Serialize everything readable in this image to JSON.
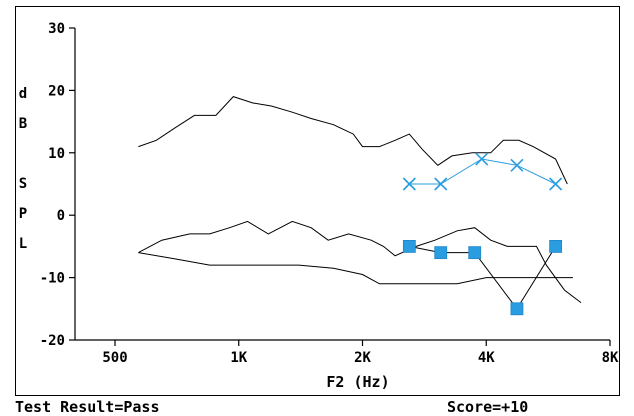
{
  "footer": {
    "result": "Test Result=Pass",
    "score": "Score=+10"
  },
  "chart_data": {
    "type": "line",
    "xlabel": "F2 (Hz)",
    "ylabel": "dBSPL",
    "ylabel_letters": [
      "d",
      "B",
      "S",
      "P",
      "L"
    ],
    "x_scale": "log2",
    "xlim": [
      500,
      8000
    ],
    "ylim": [
      -20,
      30
    ],
    "x_ticks": [
      {
        "value": 500,
        "label": "500"
      },
      {
        "value": 1000,
        "label": "1K"
      },
      {
        "value": 2000,
        "label": "2K"
      },
      {
        "value": 4000,
        "label": "4K"
      },
      {
        "value": 8000,
        "label": "8K"
      }
    ],
    "y_ticks": [
      {
        "value": 30,
        "label": "30"
      },
      {
        "value": 20,
        "label": "20"
      },
      {
        "value": 10,
        "label": "10"
      },
      {
        "value": 0,
        "label": "0"
      },
      {
        "value": -10,
        "label": "-10"
      },
      {
        "value": -20,
        "label": "-20"
      }
    ],
    "grid": false,
    "colors": {
      "axis": "#000000",
      "markers": "#2a9de0"
    },
    "series": [
      {
        "style": "upper-norm",
        "points": [
          [
            570,
            11
          ],
          [
            630,
            12
          ],
          [
            700,
            14
          ],
          [
            780,
            16
          ],
          [
            880,
            16
          ],
          [
            970,
            19
          ],
          [
            1080,
            18
          ],
          [
            1200,
            17.5
          ],
          [
            1350,
            16.5
          ],
          [
            1500,
            15.5
          ],
          [
            1700,
            14.5
          ],
          [
            1900,
            13
          ],
          [
            2000,
            11
          ],
          [
            2200,
            11
          ],
          [
            2400,
            12
          ],
          [
            2600,
            13
          ],
          [
            2800,
            10.5
          ],
          [
            3050,
            8
          ],
          [
            3300,
            9.5
          ],
          [
            3700,
            10
          ],
          [
            4100,
            10
          ],
          [
            4400,
            12
          ],
          [
            4800,
            12
          ],
          [
            5200,
            11
          ],
          [
            5900,
            9
          ],
          [
            6300,
            5
          ]
        ]
      },
      {
        "style": "lower-norm",
        "points": [
          [
            570,
            -6
          ],
          [
            650,
            -4
          ],
          [
            760,
            -3
          ],
          [
            850,
            -3
          ],
          [
            950,
            -2
          ],
          [
            1050,
            -1
          ],
          [
            1180,
            -3
          ],
          [
            1350,
            -1
          ],
          [
            1500,
            -2
          ],
          [
            1650,
            -4
          ],
          [
            1850,
            -3
          ],
          [
            2100,
            -4
          ],
          [
            2250,
            -5
          ],
          [
            2400,
            -6.5
          ],
          [
            2700,
            -5
          ],
          [
            3000,
            -4
          ],
          [
            3400,
            -2.5
          ],
          [
            3750,
            -2
          ],
          [
            4100,
            -4
          ],
          [
            4500,
            -5
          ],
          [
            5000,
            -5
          ],
          [
            5300,
            -5
          ],
          [
            5600,
            -8
          ],
          [
            6200,
            -12
          ],
          [
            6800,
            -14
          ]
        ]
      },
      {
        "style": "noise-floor",
        "points": [
          [
            570,
            -6
          ],
          [
            700,
            -7
          ],
          [
            850,
            -8
          ],
          [
            1100,
            -8
          ],
          [
            1400,
            -8
          ],
          [
            1700,
            -8.5
          ],
          [
            2000,
            -9.5
          ],
          [
            2200,
            -11
          ],
          [
            2600,
            -11
          ],
          [
            3000,
            -11
          ],
          [
            3400,
            -11
          ],
          [
            4000,
            -10
          ],
          [
            4600,
            -10
          ],
          [
            5200,
            -10
          ],
          [
            5800,
            -10
          ],
          [
            6500,
            -10
          ]
        ]
      },
      {
        "style": "noise-line",
        "marker": "x",
        "points": [
          [
            2600,
            5
          ],
          [
            3100,
            5
          ],
          [
            3900,
            9
          ],
          [
            4750,
            8
          ],
          [
            5900,
            5
          ]
        ]
      },
      {
        "style": "response",
        "marker": "square",
        "points": [
          [
            2600,
            -5
          ],
          [
            3100,
            -6
          ],
          [
            3750,
            -6
          ],
          [
            4750,
            -15
          ],
          [
            5900,
            -5
          ]
        ]
      }
    ]
  }
}
